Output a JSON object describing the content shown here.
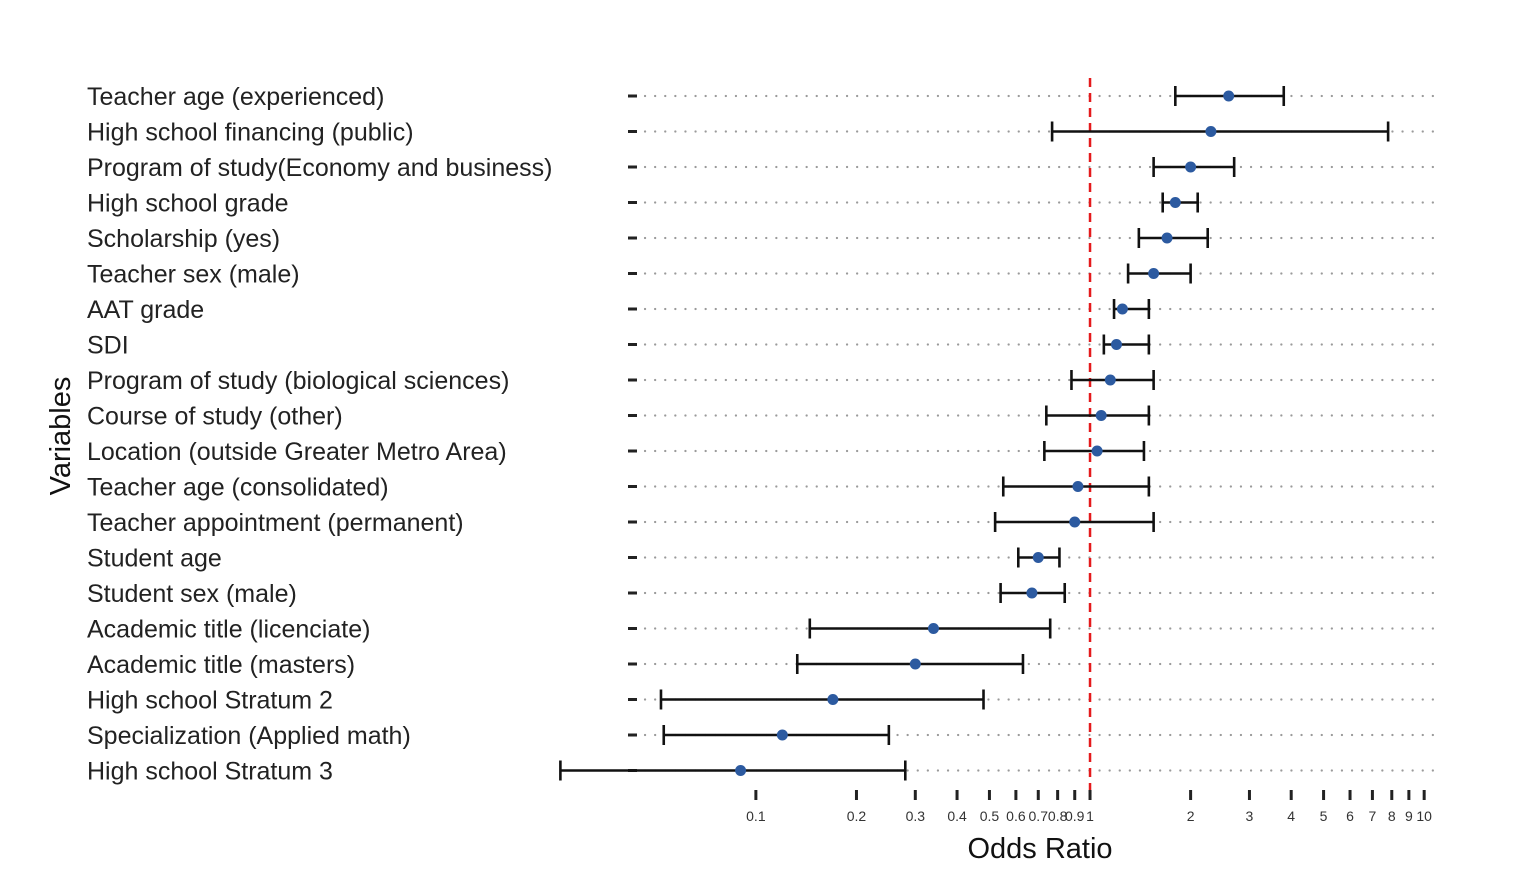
{
  "chart_data": {
    "type": "forest",
    "xlabel": "Odds Ratio",
    "ylabel": "Variables",
    "x_scale": "log",
    "xlim": [
      0.045,
      11
    ],
    "reference_line": 1,
    "reference_color": "#e41a1c",
    "point_color": "#2c5aa0",
    "grid": "dotted horizontal",
    "ticks": [
      0.1,
      0.2,
      0.3,
      0.4,
      0.5,
      0.6,
      0.7,
      0.8,
      0.9,
      1,
      2,
      3,
      4,
      5,
      6,
      7,
      8,
      9,
      10
    ],
    "tick_labels": [
      "0.1",
      "0.2",
      "0.3",
      "0.4",
      "0.5",
      "0.6",
      "0.7",
      "0.8",
      "0.9",
      "1",
      "2",
      "3",
      "4",
      "5",
      "6",
      "7",
      "8",
      "9",
      "10"
    ],
    "categories": [
      "Teacher age (experienced)",
      "High school financing (public)",
      "Program of study(Economy and business)",
      "High school grade",
      "Scholarship (yes)",
      "Teacher sex (male)",
      "AAT grade",
      "SDI",
      "Program of study (biological sciences)",
      "Course of study (other)",
      "Location (outside Greater Metro Area)",
      "Teacher age (consolidated)",
      "Teacher appointment (permanent)",
      "Student age",
      "Student sex (male)",
      "Academic title (licenciate)",
      "Academic title (masters)",
      "High school Stratum 2",
      "Specialization (Applied math)",
      "High school Stratum 3"
    ],
    "estimates": [
      2.6,
      2.3,
      2.0,
      1.8,
      1.7,
      1.55,
      1.25,
      1.2,
      1.15,
      1.08,
      1.05,
      0.92,
      0.9,
      0.7,
      0.67,
      0.34,
      0.3,
      0.17,
      0.12,
      0.09
    ],
    "lower": [
      1.8,
      0.77,
      1.55,
      1.65,
      1.4,
      1.3,
      1.18,
      1.1,
      0.88,
      0.74,
      0.73,
      0.55,
      0.52,
      0.61,
      0.54,
      0.145,
      0.133,
      0.052,
      0.053,
      0.026
    ],
    "upper": [
      3.8,
      7.8,
      2.7,
      2.1,
      2.25,
      2.0,
      1.5,
      1.5,
      1.55,
      1.5,
      1.45,
      1.5,
      1.55,
      0.81,
      0.84,
      0.76,
      0.63,
      0.48,
      0.25,
      0.28
    ]
  }
}
